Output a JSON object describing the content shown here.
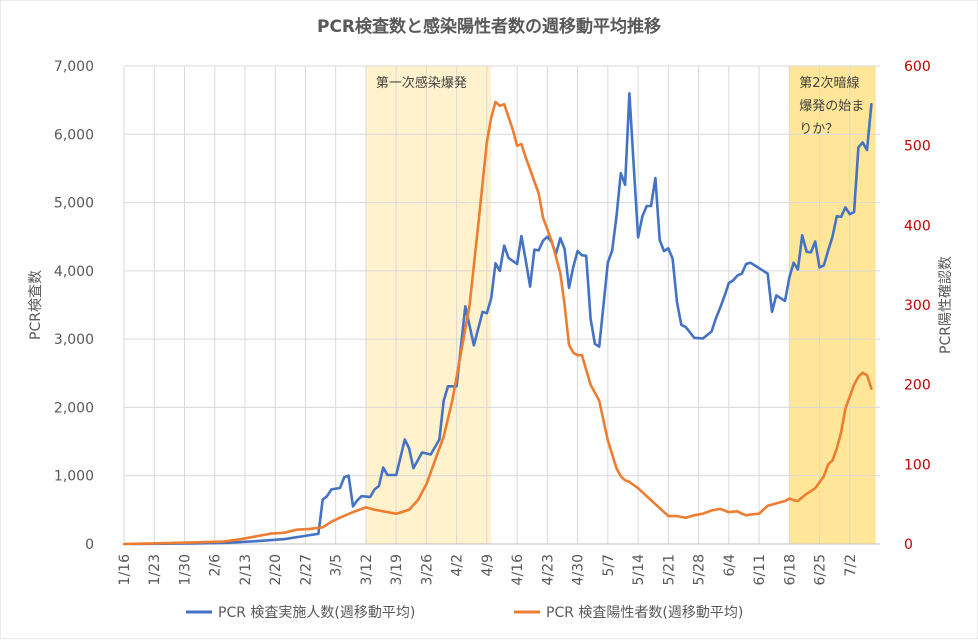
{
  "chart_data": {
    "type": "line",
    "title": "PCR検査数と感染陽性者数の週移動平均推移",
    "ylabel_left": "PCR検査数",
    "ylabel_right": "PCR陽性確認数",
    "xlabel": "",
    "ylim_left": [
      0,
      7000
    ],
    "ylim_right": [
      0,
      600
    ],
    "y_ticks_left": [
      "0",
      "1,000",
      "2,000",
      "3,000",
      "4,000",
      "5,000",
      "6,000",
      "7,000"
    ],
    "y_ticks_right": [
      "0",
      "100",
      "200",
      "300",
      "400",
      "500",
      "600"
    ],
    "x_tick_labels": [
      "1/16",
      "1/23",
      "1/30",
      "2/6",
      "2/13",
      "2/20",
      "2/27",
      "3/5",
      "3/12",
      "3/19",
      "3/26",
      "4/2",
      "4/9",
      "4/16",
      "4/23",
      "4/30",
      "5/7",
      "5/14",
      "5/21",
      "5/28",
      "6/4",
      "6/11",
      "6/18",
      "6/25",
      "7/2"
    ],
    "x_start": "1/16",
    "grid": true,
    "legend_position": "bottom",
    "colors": {
      "series1": "#4472C4",
      "series2": "#ED7D31",
      "band1": "#FFF2CC",
      "band2": "#FFE699",
      "right_axis": "#C00000"
    },
    "annotations": [
      {
        "text_lines": [
          "第一次感染爆発"
        ],
        "x_from": "3/12",
        "x_to": "4/10"
      },
      {
        "text_lines": [
          "第2次暗線",
          "爆発の始ま",
          "りか？"
        ],
        "x_from": "6/18",
        "x_to": "7/8"
      }
    ],
    "series": [
      {
        "name": "PCR 検査実施人数(週移動平均)",
        "axis": "left",
        "color": "#4472C4",
        "points": [
          [
            "1/18",
            0
          ],
          [
            "1/25",
            5
          ],
          [
            "2/1",
            8
          ],
          [
            "2/8",
            15
          ],
          [
            "2/15",
            40
          ],
          [
            "2/22",
            70
          ],
          [
            "2/26",
            110
          ],
          [
            "2/28",
            130
          ],
          [
            "3/1",
            150
          ],
          [
            "3/2",
            650
          ],
          [
            "3/3",
            700
          ],
          [
            "3/4",
            800
          ],
          [
            "3/6",
            820
          ],
          [
            "3/7",
            980
          ],
          [
            "3/8",
            1000
          ],
          [
            "3/9",
            550
          ],
          [
            "3/10",
            640
          ],
          [
            "3/11",
            700
          ],
          [
            "3/13",
            690
          ],
          [
            "3/14",
            800
          ],
          [
            "3/15",
            850
          ],
          [
            "3/16",
            1120
          ],
          [
            "3/17",
            1010
          ],
          [
            "3/19",
            1010
          ],
          [
            "3/21",
            1530
          ],
          [
            "3/22",
            1400
          ],
          [
            "3/23",
            1110
          ],
          [
            "3/25",
            1340
          ],
          [
            "3/27",
            1310
          ],
          [
            "3/29",
            1530
          ],
          [
            "3/30",
            2100
          ],
          [
            "3/31",
            2310
          ],
          [
            "4/2",
            2310
          ],
          [
            "4/3",
            2900
          ],
          [
            "4/4",
            3480
          ],
          [
            "4/6",
            2910
          ],
          [
            "4/8",
            3400
          ],
          [
            "4/9",
            3380
          ],
          [
            "4/10",
            3600
          ],
          [
            "4/11",
            4110
          ],
          [
            "4/12",
            4000
          ],
          [
            "4/13",
            4370
          ],
          [
            "4/14",
            4190
          ],
          [
            "4/16",
            4100
          ],
          [
            "4/17",
            4510
          ],
          [
            "4/18",
            4150
          ],
          [
            "4/19",
            3770
          ],
          [
            "4/20",
            4310
          ],
          [
            "4/21",
            4300
          ],
          [
            "4/22",
            4440
          ],
          [
            "4/23",
            4500
          ],
          [
            "4/24",
            4420
          ],
          [
            "4/25",
            4250
          ],
          [
            "4/26",
            4480
          ],
          [
            "4/27",
            4320
          ],
          [
            "4/28",
            3750
          ],
          [
            "4/29",
            4060
          ],
          [
            "4/30",
            4290
          ],
          [
            "5/1",
            4230
          ],
          [
            "5/2",
            4220
          ],
          [
            "5/3",
            3300
          ],
          [
            "5/4",
            2930
          ],
          [
            "5/5",
            2890
          ],
          [
            "5/6",
            3500
          ],
          [
            "5/7",
            4120
          ],
          [
            "5/8",
            4300
          ],
          [
            "5/9",
            4800
          ],
          [
            "5/10",
            5430
          ],
          [
            "5/11",
            5260
          ],
          [
            "5/12",
            6600
          ],
          [
            "5/13",
            5520
          ],
          [
            "5/14",
            4490
          ],
          [
            "5/15",
            4800
          ],
          [
            "5/16",
            4950
          ],
          [
            "5/17",
            4950
          ],
          [
            "5/18",
            5360
          ],
          [
            "5/19",
            4450
          ],
          [
            "5/20",
            4290
          ],
          [
            "5/21",
            4330
          ],
          [
            "5/22",
            4180
          ],
          [
            "5/23",
            3540
          ],
          [
            "5/24",
            3210
          ],
          [
            "5/25",
            3180
          ],
          [
            "5/26",
            3100
          ],
          [
            "5/27",
            3020
          ],
          [
            "5/29",
            3010
          ],
          [
            "5/30",
            3060
          ],
          [
            "5/31",
            3110
          ],
          [
            "6/1",
            3300
          ],
          [
            "6/2",
            3460
          ],
          [
            "6/3",
            3630
          ],
          [
            "6/4",
            3820
          ],
          [
            "6/5",
            3860
          ],
          [
            "6/6",
            3930
          ],
          [
            "6/7",
            3960
          ],
          [
            "6/8",
            4100
          ],
          [
            "6/9",
            4120
          ],
          [
            "6/10",
            4080
          ],
          [
            "6/11",
            4040
          ],
          [
            "6/13",
            3960
          ],
          [
            "6/14",
            3400
          ],
          [
            "6/15",
            3640
          ],
          [
            "6/16",
            3600
          ],
          [
            "6/17",
            3560
          ],
          [
            "6/18",
            3900
          ],
          [
            "6/19",
            4120
          ],
          [
            "6/20",
            4020
          ],
          [
            "6/21",
            4520
          ],
          [
            "6/22",
            4280
          ],
          [
            "6/23",
            4270
          ],
          [
            "6/24",
            4430
          ],
          [
            "6/25",
            4050
          ],
          [
            "6/26",
            4080
          ],
          [
            "6/27",
            4300
          ],
          [
            "6/28",
            4500
          ],
          [
            "6/29",
            4800
          ],
          [
            "6/30",
            4790
          ],
          [
            "7/1",
            4930
          ],
          [
            "7/2",
            4830
          ],
          [
            "7/3",
            4860
          ],
          [
            "7/4",
            5810
          ],
          [
            "7/5",
            5880
          ],
          [
            "7/6",
            5770
          ],
          [
            "7/7",
            6440
          ]
        ]
      },
      {
        "name": "PCR 検査陽性者数(週移動平均)",
        "axis": "right",
        "color": "#ED7D31",
        "points": [
          [
            "1/16",
            0
          ],
          [
            "1/25",
            1
          ],
          [
            "2/1",
            2
          ],
          [
            "2/8",
            3
          ],
          [
            "2/12",
            6
          ],
          [
            "2/15",
            9
          ],
          [
            "2/19",
            13
          ],
          [
            "2/22",
            14
          ],
          [
            "2/25",
            18
          ],
          [
            "2/28",
            19
          ],
          [
            "3/2",
            21
          ],
          [
            "3/4",
            28
          ],
          [
            "3/6",
            33
          ],
          [
            "3/9",
            40
          ],
          [
            "3/12",
            46
          ],
          [
            "3/14",
            43
          ],
          [
            "3/17",
            40
          ],
          [
            "3/19",
            38
          ],
          [
            "3/22",
            43
          ],
          [
            "3/24",
            55
          ],
          [
            "3/26",
            75
          ],
          [
            "3/28",
            105
          ],
          [
            "3/30",
            135
          ],
          [
            "4/1",
            180
          ],
          [
            "4/3",
            240
          ],
          [
            "4/5",
            300
          ],
          [
            "4/7",
            400
          ],
          [
            "4/9",
            505
          ],
          [
            "4/10",
            535
          ],
          [
            "4/11",
            555
          ],
          [
            "4/12",
            550
          ],
          [
            "4/13",
            552
          ],
          [
            "4/15",
            520
          ],
          [
            "4/16",
            500
          ],
          [
            "4/17",
            502
          ],
          [
            "4/18",
            485
          ],
          [
            "4/20",
            455
          ],
          [
            "4/21",
            440
          ],
          [
            "4/22",
            410
          ],
          [
            "4/24",
            380
          ],
          [
            "4/26",
            340
          ],
          [
            "4/27",
            300
          ],
          [
            "4/28",
            250
          ],
          [
            "4/29",
            240
          ],
          [
            "4/30",
            237
          ],
          [
            "5/1",
            237
          ],
          [
            "5/3",
            200
          ],
          [
            "5/5",
            180
          ],
          [
            "5/7",
            130
          ],
          [
            "5/9",
            95
          ],
          [
            "5/10",
            85
          ],
          [
            "5/11",
            80
          ],
          [
            "5/12",
            78
          ],
          [
            "5/14",
            70
          ],
          [
            "5/17",
            55
          ],
          [
            "5/18",
            50
          ],
          [
            "5/20",
            40
          ],
          [
            "5/21",
            35
          ],
          [
            "5/23",
            35
          ],
          [
            "5/25",
            33
          ],
          [
            "5/27",
            36
          ],
          [
            "5/29",
            38
          ],
          [
            "5/31",
            42
          ],
          [
            "6/2",
            44
          ],
          [
            "6/4",
            40
          ],
          [
            "6/6",
            41
          ],
          [
            "6/7",
            38
          ],
          [
            "6/8",
            36
          ],
          [
            "6/9",
            37
          ],
          [
            "6/11",
            38
          ],
          [
            "6/13",
            48
          ],
          [
            "6/15",
            51
          ],
          [
            "6/17",
            54
          ],
          [
            "6/18",
            57
          ],
          [
            "6/19",
            55
          ],
          [
            "6/20",
            54
          ],
          [
            "6/22",
            63
          ],
          [
            "6/24",
            70
          ],
          [
            "6/26",
            85
          ],
          [
            "6/27",
            100
          ],
          [
            "6/28",
            105
          ],
          [
            "6/29",
            120
          ],
          [
            "6/30",
            140
          ],
          [
            "7/1",
            170
          ],
          [
            "7/2",
            185
          ],
          [
            "7/3",
            200
          ],
          [
            "7/4",
            210
          ],
          [
            "7/5",
            215
          ],
          [
            "7/6",
            212
          ],
          [
            "7/7",
            195
          ]
        ]
      }
    ]
  }
}
